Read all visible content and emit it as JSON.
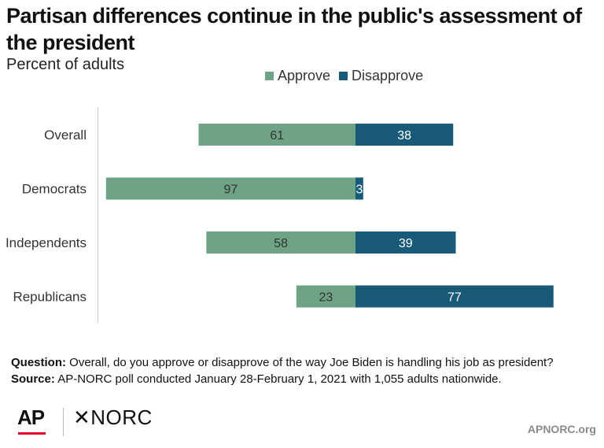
{
  "header": {
    "title": "Partisan differences continue in the public's assessment of the president",
    "subtitle": "Percent of adults"
  },
  "legend": {
    "approve_label": "Approve",
    "disapprove_label": "Disapprove"
  },
  "colors": {
    "approve": "#6fa386",
    "disapprove": "#195a78",
    "approve_text": "#333333",
    "disapprove_text": "#ffffff"
  },
  "chart_data": {
    "type": "bar",
    "orientation": "horizontal diverging",
    "categories": [
      "Overall",
      "Democrats",
      "Independents",
      "Republicans"
    ],
    "series": [
      {
        "name": "Approve",
        "values": [
          61,
          97,
          58,
          23
        ]
      },
      {
        "name": "Disapprove",
        "values": [
          38,
          3,
          39,
          77
        ]
      }
    ],
    "legend_position": "top",
    "grid": false
  },
  "notes": {
    "question_label": "Question:",
    "question_text": "Overall, do you approve or disapprove of the way Joe Biden is handling his job as president?",
    "source_label": "Source:",
    "source_text": "AP-NORC poll conducted January 28-February 1, 2021 with 1,055 adults nationwide."
  },
  "footer": {
    "ap_logo": "AP",
    "norc_logo": "✕NORC",
    "site": "APNORC.org"
  }
}
